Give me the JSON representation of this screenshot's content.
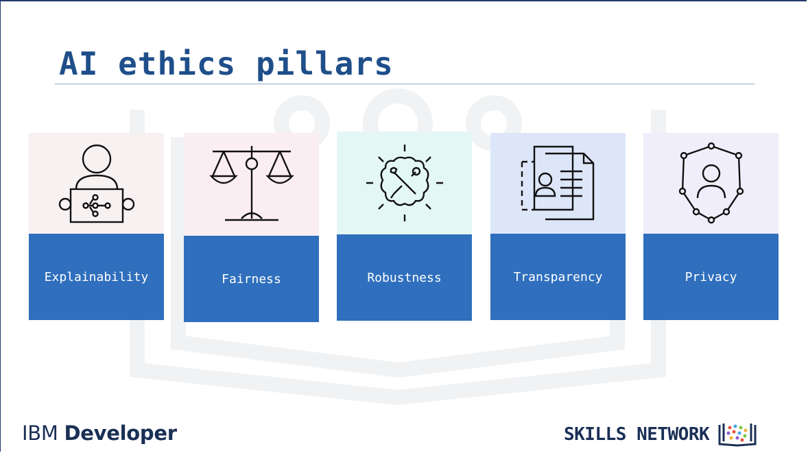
{
  "slide": {
    "title": "AI ethics pillars"
  },
  "pillars": [
    {
      "label": "Explainability",
      "icon": "person-presenting-network-icon",
      "tint": "#f7f1f2"
    },
    {
      "label": "Fairness",
      "icon": "balance-scale-icon",
      "tint": "#fbeef3"
    },
    {
      "label": "Robustness",
      "icon": "brain-tools-icon",
      "tint": "#e3f7f5"
    },
    {
      "label": "Transparency",
      "icon": "profile-documents-icon",
      "tint": "#dde6f8"
    },
    {
      "label": "Privacy",
      "icon": "shield-person-icon",
      "tint": "#f0eefb"
    }
  ],
  "footer": {
    "brand_ibm": "IBM",
    "brand_developer": "Developer",
    "skills_network": "SKILLS NETWORK"
  },
  "colors": {
    "title": "#1f4f8a",
    "label_bg": "#2f6fbd",
    "footer_text": "#1a2f55"
  }
}
